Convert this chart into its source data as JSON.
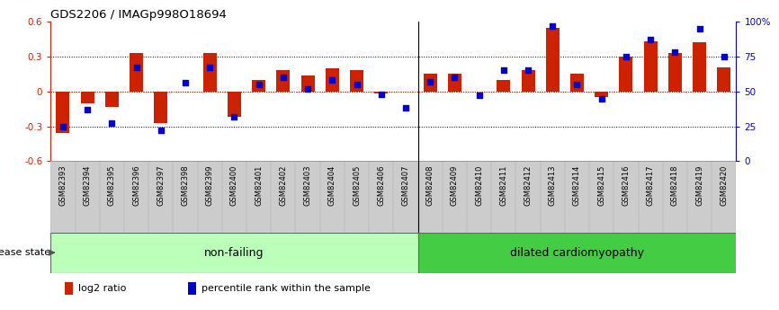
{
  "title": "GDS2206 / IMAGp998O18694",
  "samples": [
    "GSM82393",
    "GSM82394",
    "GSM82395",
    "GSM82396",
    "GSM82397",
    "GSM82398",
    "GSM82399",
    "GSM82400",
    "GSM82401",
    "GSM82402",
    "GSM82403",
    "GSM82404",
    "GSM82405",
    "GSM82406",
    "GSM82407",
    "GSM82408",
    "GSM82409",
    "GSM82410",
    "GSM82411",
    "GSM82412",
    "GSM82413",
    "GSM82414",
    "GSM82415",
    "GSM82416",
    "GSM82417",
    "GSM82418",
    "GSM82419",
    "GSM82420"
  ],
  "log2_ratio": [
    -0.36,
    -0.1,
    -0.13,
    0.33,
    -0.27,
    0.0,
    0.33,
    -0.22,
    0.1,
    0.18,
    0.14,
    0.2,
    0.18,
    -0.02,
    0.0,
    0.15,
    0.15,
    0.0,
    0.1,
    0.18,
    0.55,
    0.15,
    -0.05,
    0.3,
    0.43,
    0.33,
    0.42,
    0.21
  ],
  "percentile": [
    25,
    37,
    27,
    67,
    22,
    56,
    67,
    32,
    55,
    60,
    52,
    58,
    55,
    48,
    38,
    57,
    60,
    47,
    65,
    65,
    97,
    55,
    45,
    75,
    87,
    78,
    95,
    75
  ],
  "non_failing_count": 15,
  "ylim_left": [
    -0.6,
    0.6
  ],
  "ylim_right": [
    0,
    100
  ],
  "yticks_left": [
    -0.6,
    -0.3,
    0.0,
    0.3,
    0.6
  ],
  "ytick_labels_left": [
    "-0.6",
    "-0.3",
    "0",
    "0.3",
    "0.6"
  ],
  "yticks_right": [
    0,
    25,
    50,
    75,
    100
  ],
  "ytick_labels_right": [
    "0",
    "25",
    "50",
    "75",
    "100%"
  ],
  "hlines": [
    -0.3,
    0.0,
    0.3
  ],
  "bar_color": "#cc2200",
  "dot_color": "#0000cc",
  "non_failing_color": "#bbffbb",
  "dilated_color": "#44cc44",
  "xticklabel_bg": "#cccccc",
  "bg_color": "#ffffff",
  "non_failing_label": "non-failing",
  "dilated_label": "dilated cardiomyopathy",
  "legend_bar_label": "log2 ratio",
  "legend_dot_label": "percentile rank within the sample",
  "disease_state_label": "disease state"
}
